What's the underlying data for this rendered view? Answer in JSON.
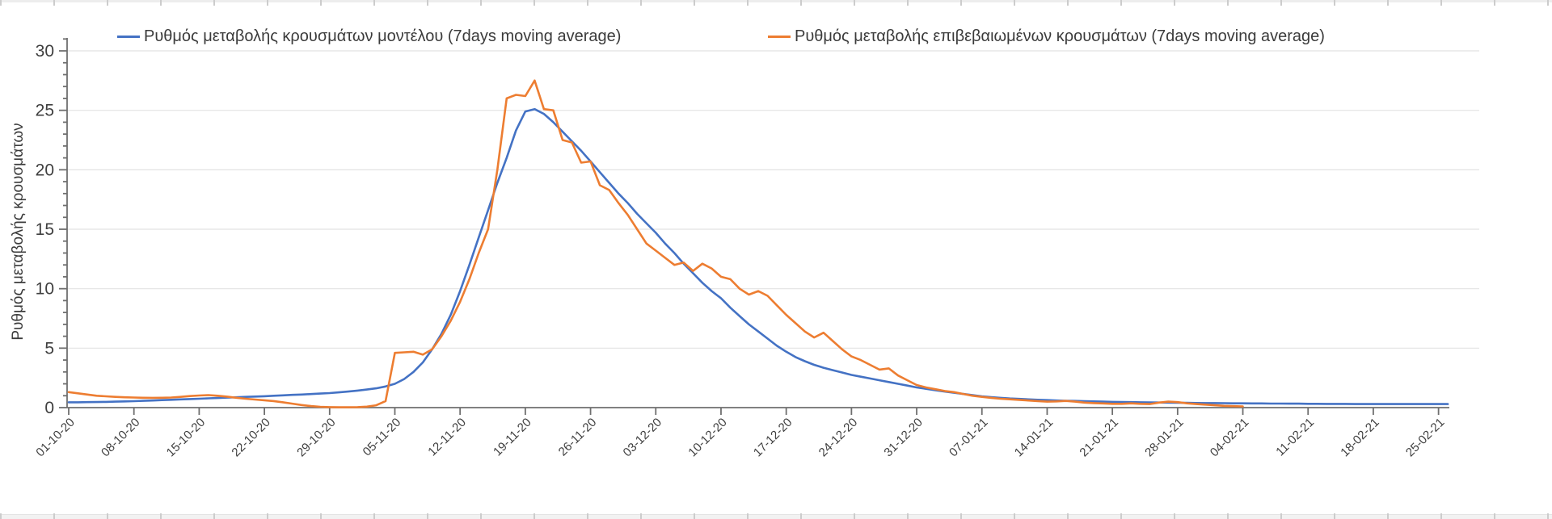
{
  "legend": {
    "items": [
      {
        "label": "Ρυθμός μεταβολής κρουσμάτων μοντέλου (7days moving average)",
        "color": "#4472C4"
      },
      {
        "label": "Ρυθμός μεταβολής επιβεβαιωμένων κρουσμάτων (7days moving average)",
        "color": "#ED7D31"
      }
    ]
  },
  "y_axis": {
    "title": "Ρυθμός μεταβολής κρουσμάτων",
    "ticks": [
      0,
      5,
      10,
      15,
      20,
      25,
      30
    ],
    "min": 0,
    "max": 30,
    "minor_tick_step": 1
  },
  "x_axis": {
    "tick_labels": [
      "01-10-20",
      "08-10-20",
      "15-10-20",
      "22-10-20",
      "29-10-20",
      "05-11-20",
      "12-11-20",
      "19-11-20",
      "26-11-20",
      "03-12-20",
      "10-12-20",
      "17-12-20",
      "24-12-20",
      "31-12-20",
      "07-01-21",
      "14-01-21",
      "21-01-21",
      "28-01-21",
      "04-02-21",
      "11-02-21",
      "18-02-21",
      "25-02-21"
    ]
  },
  "chart_data": {
    "type": "line",
    "title": "",
    "ylabel": "Ρυθμός μεταβολής κρουσμάτων",
    "ylim": [
      0,
      30
    ],
    "grid": "horizontal",
    "legend_position": "top",
    "x_start_date": "01-10-20",
    "x_unit": "day",
    "x_tick_interval_days": 7,
    "series": [
      {
        "name": "Ρυθμός μεταβολής κρουσμάτων μοντέλου (7days moving average)",
        "color": "#4472C4",
        "values": [
          0.45,
          0.45,
          0.46,
          0.47,
          0.48,
          0.5,
          0.52,
          0.54,
          0.57,
          0.6,
          0.63,
          0.66,
          0.69,
          0.72,
          0.75,
          0.78,
          0.81,
          0.84,
          0.87,
          0.9,
          0.93,
          0.96,
          1.0,
          1.03,
          1.07,
          1.1,
          1.14,
          1.18,
          1.22,
          1.28,
          1.35,
          1.43,
          1.52,
          1.62,
          1.78,
          2.0,
          2.4,
          3.0,
          3.8,
          4.9,
          6.2,
          7.8,
          9.8,
          12.0,
          14.3,
          16.6,
          18.9,
          21.0,
          23.3,
          24.9,
          25.1,
          24.7,
          24.0,
          23.2,
          22.4,
          21.6,
          20.7,
          19.8,
          18.9,
          18.0,
          17.2,
          16.3,
          15.5,
          14.7,
          13.8,
          13.0,
          12.1,
          11.3,
          10.5,
          9.8,
          9.2,
          8.4,
          7.7,
          7.0,
          6.4,
          5.8,
          5.2,
          4.7,
          4.25,
          3.9,
          3.6,
          3.35,
          3.15,
          2.95,
          2.75,
          2.6,
          2.45,
          2.3,
          2.15,
          2.0,
          1.85,
          1.7,
          1.58,
          1.46,
          1.35,
          1.25,
          1.15,
          1.05,
          0.95,
          0.88,
          0.82,
          0.77,
          0.73,
          0.69,
          0.66,
          0.63,
          0.6,
          0.58,
          0.56,
          0.54,
          0.52,
          0.5,
          0.48,
          0.47,
          0.46,
          0.45,
          0.44,
          0.43,
          0.42,
          0.41,
          0.4,
          0.39,
          0.38,
          0.38,
          0.37,
          0.36,
          0.36,
          0.35,
          0.35,
          0.34,
          0.34,
          0.33,
          0.33,
          0.32,
          0.32,
          0.31,
          0.31,
          0.31,
          0.3,
          0.3,
          0.3,
          0.3,
          0.3,
          0.3,
          0.3,
          0.3,
          0.3,
          0.3,
          0.3
        ]
      },
      {
        "name": "Ρυθμός μεταβολής επιβεβαιωμένων κρουσμάτων (7days moving average)",
        "color": "#ED7D31",
        "values": [
          1.3,
          1.2,
          1.1,
          1.0,
          0.95,
          0.9,
          0.87,
          0.85,
          0.83,
          0.82,
          0.83,
          0.85,
          0.9,
          0.97,
          1.02,
          1.05,
          1.0,
          0.92,
          0.83,
          0.75,
          0.68,
          0.62,
          0.55,
          0.45,
          0.33,
          0.22,
          0.13,
          0.07,
          0.04,
          0.03,
          0.03,
          0.04,
          0.08,
          0.2,
          0.55,
          4.6,
          4.65,
          4.7,
          4.45,
          4.9,
          6.0,
          7.3,
          8.9,
          10.8,
          13.0,
          15.0,
          20.0,
          26.0,
          26.3,
          26.2,
          27.5,
          25.1,
          25.0,
          22.5,
          22.3,
          20.6,
          20.7,
          18.7,
          18.3,
          17.2,
          16.2,
          15.0,
          13.8,
          13.2,
          12.6,
          12.0,
          12.2,
          11.5,
          12.1,
          11.7,
          11.0,
          10.8,
          10.0,
          9.5,
          9.8,
          9.4,
          8.6,
          7.8,
          7.1,
          6.4,
          5.9,
          6.3,
          5.6,
          4.9,
          4.3,
          4.0,
          3.6,
          3.2,
          3.3,
          2.7,
          2.3,
          1.9,
          1.7,
          1.55,
          1.4,
          1.3,
          1.15,
          1.0,
          0.9,
          0.82,
          0.75,
          0.7,
          0.65,
          0.6,
          0.55,
          0.5,
          0.52,
          0.56,
          0.5,
          0.42,
          0.38,
          0.35,
          0.32,
          0.32,
          0.36,
          0.32,
          0.3,
          0.42,
          0.5,
          0.46,
          0.36,
          0.3,
          0.25,
          0.2,
          0.15,
          0.12,
          0.1
        ]
      }
    ]
  }
}
